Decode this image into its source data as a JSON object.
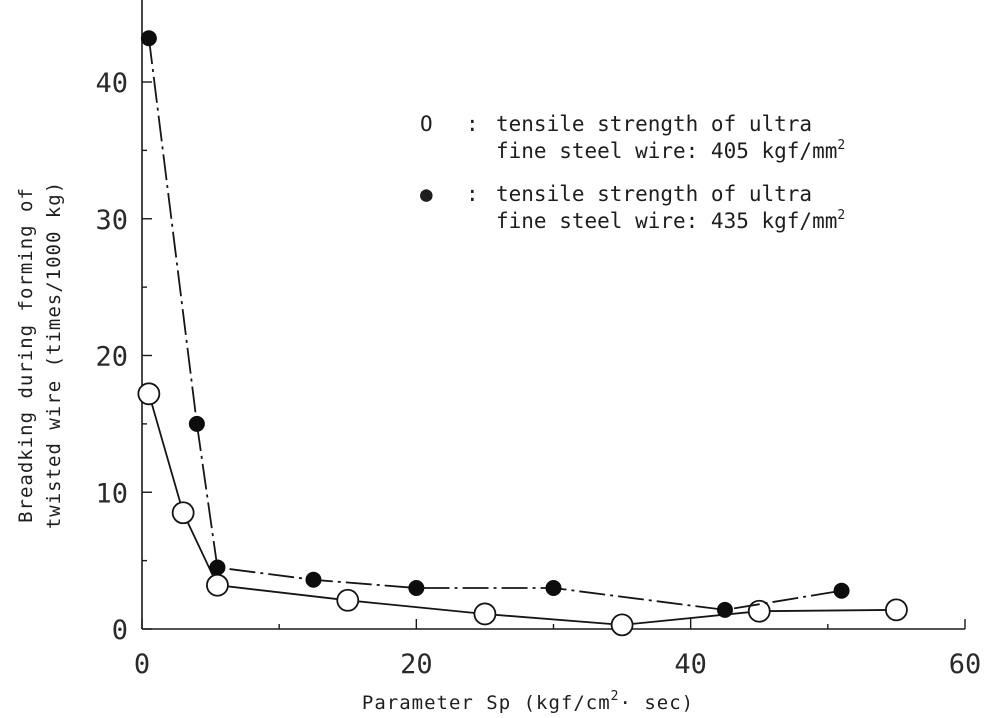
{
  "chart_data": {
    "type": "line",
    "xlabel": {
      "text": "Parameter Sp (kgf/cm",
      "sup": "2",
      "suffix": "· sec)"
    },
    "ylabel": {
      "line1": "Breadking during forming of",
      "line2": "twisted wire (times/1000 kg)"
    },
    "xlim": [
      0,
      60
    ],
    "ylim": [
      0,
      45
    ],
    "xticks": [
      "0",
      "20",
      "40",
      "60"
    ],
    "yticks": [
      "0",
      "10",
      "20",
      "30",
      "40"
    ],
    "grid": false,
    "legend_position": "top-right",
    "series": [
      {
        "marker": "open-circle",
        "symbol": "O",
        "separator": ":",
        "label_line1": "tensile strength of ultra",
        "label_line2_main": "fine steel wire: 405 kgf/mm",
        "label_line2_sup": "2",
        "points": [
          {
            "x": 0.5,
            "y": 17.2
          },
          {
            "x": 3.0,
            "y": 8.5
          },
          {
            "x": 5.5,
            "y": 3.2
          },
          {
            "x": 15,
            "y": 2.1
          },
          {
            "x": 25,
            "y": 1.1
          },
          {
            "x": 35,
            "y": 0.3
          },
          {
            "x": 45,
            "y": 1.3
          },
          {
            "x": 55,
            "y": 1.4
          }
        ]
      },
      {
        "marker": "filled-circle",
        "symbol": "●",
        "separator": ":",
        "label_line1": "tensile strength of ultra",
        "label_line2_main": "fine steel wire: 435 kgf/mm",
        "label_line2_sup": "2",
        "points": [
          {
            "x": 0.5,
            "y": 43.2
          },
          {
            "x": 4.0,
            "y": 15.0
          },
          {
            "x": 5.5,
            "y": 4.5
          },
          {
            "x": 12.5,
            "y": 3.6
          },
          {
            "x": 20,
            "y": 3.0
          },
          {
            "x": 30,
            "y": 3.0
          },
          {
            "x": 42.5,
            "y": 1.4
          },
          {
            "x": 51,
            "y": 2.8
          }
        ]
      }
    ]
  }
}
